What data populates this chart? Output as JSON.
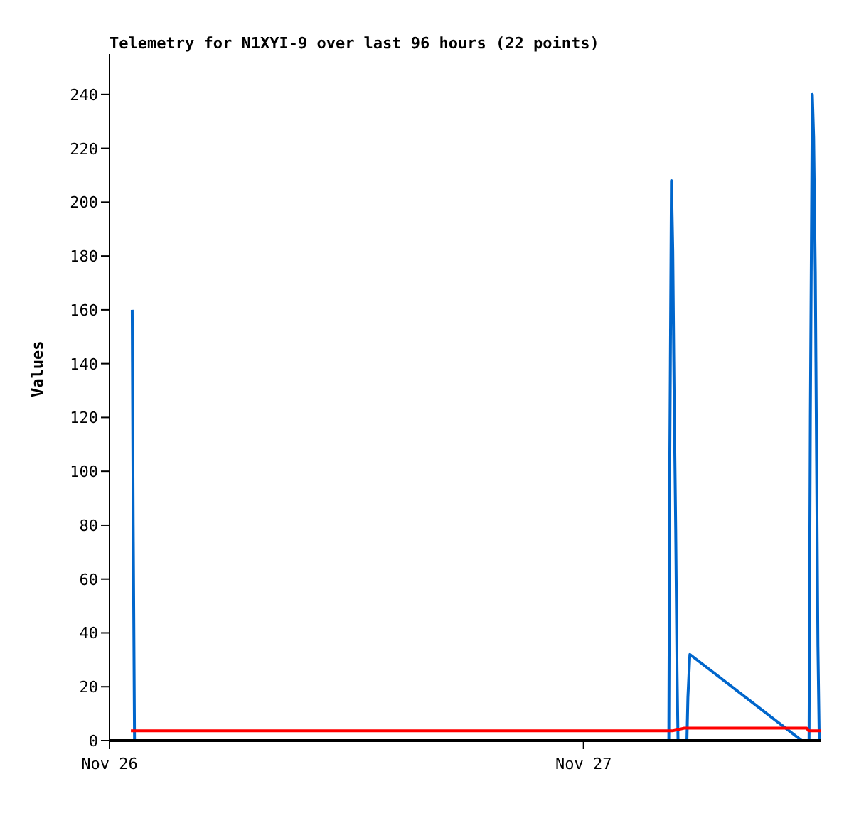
{
  "chart_data": {
    "type": "line",
    "title": "Telemetry for N1XYI-9 over last 96 hours (22 points)",
    "ylabel": "Values",
    "xlim": [
      "--11-26",
      "--11-27T12:00"
    ],
    "xticks": [
      {
        "value": "--11-26",
        "label": "Nov 26"
      },
      {
        "value": "--11-27",
        "label": "Nov 27"
      }
    ],
    "ylim": [
      0,
      255
    ],
    "yticks": [
      0,
      20,
      40,
      60,
      80,
      100,
      120,
      140,
      160,
      180,
      200,
      220,
      240
    ],
    "marker": "none",
    "line_style": "solid",
    "series": [
      {
        "color": "#0066cc",
        "x": [
          "--11-26T01:09",
          "--11-26T01:12",
          "--11-26T01:16",
          "--11-27T04:19",
          "--11-27T04:22",
          "--11-27T04:27",
          "--11-27T04:31",
          "--11-27T04:35",
          "--11-27T04:40",
          "--11-27T04:44",
          "--11-27T04:47",
          "--11-27T05:14",
          "--11-27T05:17",
          "--11-27T05:23",
          "--11-27T11:03",
          "--11-27T11:25",
          "--11-27T11:29",
          "--11-27T11:35",
          "--11-27T11:39",
          "--11-27T11:44",
          "--11-27T11:48",
          "--11-27T11:52",
          "--11-27T11:56"
        ],
        "values": [
          160,
          80,
          0,
          0,
          105,
          208,
          182,
          130,
          78,
          26,
          0,
          0,
          16,
          32,
          0,
          0,
          121,
          240,
          224,
          174,
          104,
          35,
          0
        ]
      },
      {
        "color": "#ff0000",
        "x": [
          "--11-26T01:05",
          "--11-27T04:30",
          "--11-27T05:06",
          "--11-27T11:18",
          "--11-27T11:24",
          "--11-27T12:00"
        ],
        "values": [
          3.6,
          3.6,
          4.6,
          4.6,
          3.6,
          3.6
        ]
      }
    ]
  }
}
